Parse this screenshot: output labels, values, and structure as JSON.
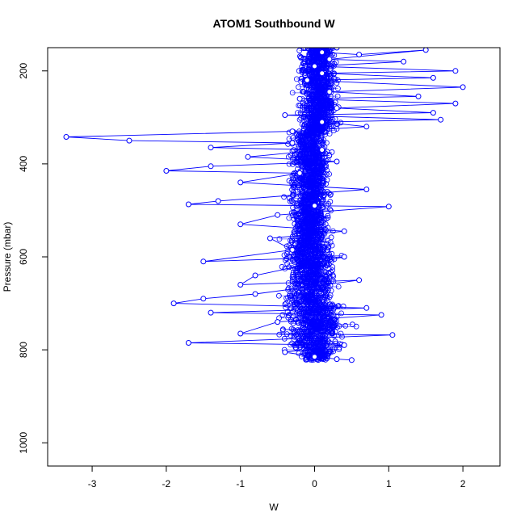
{
  "chart_data": {
    "type": "scatter",
    "title": "ATOM1 Southbound W",
    "xlabel": "W",
    "ylabel": "Pressure (mbar)",
    "xlim": [
      -3.6,
      2.5
    ],
    "ylim": [
      1050,
      150
    ],
    "y_reversed": true,
    "x_ticks": [
      -3,
      -2,
      -1,
      0,
      1,
      2
    ],
    "y_ticks": [
      200,
      400,
      600,
      800,
      1000
    ],
    "grid": false,
    "legend": "none",
    "series": [
      {
        "style": "points-connected-by-lines",
        "color": "#0000ff",
        "points": [
          [
            0.3,
            150
          ],
          [
            0.1,
            160
          ],
          [
            0.6,
            165
          ],
          [
            1.5,
            155
          ],
          [
            0.2,
            175
          ],
          [
            1.2,
            180
          ],
          [
            0.0,
            190
          ],
          [
            1.9,
            200
          ],
          [
            0.1,
            205
          ],
          [
            1.6,
            215
          ],
          [
            -0.1,
            220
          ],
          [
            2.0,
            235
          ],
          [
            0.2,
            245
          ],
          [
            1.4,
            255
          ],
          [
            -0.2,
            260
          ],
          [
            1.9,
            270
          ],
          [
            0.3,
            280
          ],
          [
            1.6,
            290
          ],
          [
            -0.4,
            295
          ],
          [
            1.7,
            305
          ],
          [
            0.1,
            310
          ],
          [
            0.7,
            320
          ],
          [
            -0.3,
            330
          ],
          [
            -3.35,
            342
          ],
          [
            -2.5,
            350
          ],
          [
            -0.3,
            355
          ],
          [
            -1.4,
            365
          ],
          [
            0.1,
            370
          ],
          [
            -0.9,
            385
          ],
          [
            0.3,
            395
          ],
          [
            -1.4,
            405
          ],
          [
            -2.0,
            415
          ],
          [
            -0.2,
            420
          ],
          [
            -1.0,
            440
          ],
          [
            0.7,
            455
          ],
          [
            -1.3,
            480
          ],
          [
            -1.7,
            487
          ],
          [
            0.0,
            490
          ],
          [
            1.0,
            492
          ],
          [
            -0.5,
            510
          ],
          [
            -1.0,
            530
          ],
          [
            0.4,
            545
          ],
          [
            -0.6,
            560
          ],
          [
            -0.3,
            585
          ],
          [
            -1.5,
            610
          ],
          [
            0.4,
            600
          ],
          [
            -0.8,
            640
          ],
          [
            -1.0,
            660
          ],
          [
            0.6,
            650
          ],
          [
            -0.8,
            680
          ],
          [
            -1.5,
            690
          ],
          [
            -1.9,
            700
          ],
          [
            0.7,
            710
          ],
          [
            -1.4,
            720
          ],
          [
            0.9,
            725
          ],
          [
            -0.5,
            740
          ],
          [
            -1.0,
            765
          ],
          [
            1.05,
            768
          ],
          [
            -1.7,
            785
          ],
          [
            0.4,
            790
          ],
          [
            -0.4,
            805
          ],
          [
            0.0,
            815
          ],
          [
            0.3,
            820
          ],
          [
            0.5,
            822
          ]
        ]
      }
    ],
    "cloud": {
      "color": "#0000ff",
      "bands": [
        {
          "p": [
            150,
            330
          ],
          "center": 0.05,
          "core": 0.35
        },
        {
          "p": [
            330,
            560
          ],
          "center": -0.05,
          "core": 0.35
        },
        {
          "p": [
            560,
            700
          ],
          "center": -0.05,
          "core": 0.45
        },
        {
          "p": [
            700,
            800
          ],
          "center": 0.0,
          "core": 0.55
        },
        {
          "p": [
            800,
            822
          ],
          "center": 0.05,
          "core": 0.3
        }
      ]
    }
  }
}
